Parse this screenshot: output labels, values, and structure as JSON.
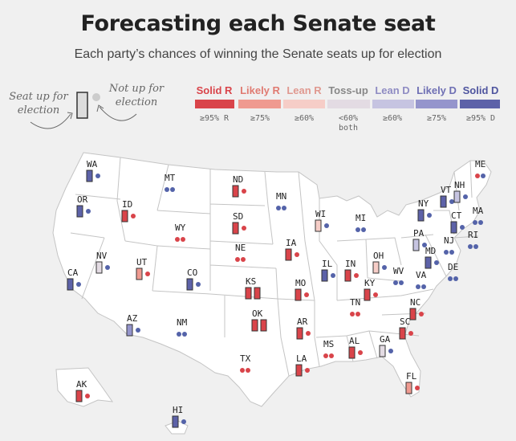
{
  "title": "Forecasting each Senate seat",
  "subtitle": "Each party’s chances of winning the Senate seats up for election",
  "hints": {
    "up": "Seat up for election",
    "not_up": "Not up for election"
  },
  "legend": [
    {
      "label": "Solid R",
      "color": "#d9444a",
      "threshold": "≥95% R",
      "threshold2": ""
    },
    {
      "label": "Likely R",
      "color": "#ef9a90",
      "threshold": "≥75%",
      "threshold2": ""
    },
    {
      "label": "Lean R",
      "color": "#f6cdc7",
      "threshold": "≥60%",
      "threshold2": ""
    },
    {
      "label": "Toss-up",
      "color": "#e3dbe3",
      "threshold": "<60%",
      "threshold2": "both"
    },
    {
      "label": "Lean D",
      "color": "#c6c4e1",
      "threshold": "≥60%",
      "threshold2": ""
    },
    {
      "label": "Likely D",
      "color": "#9595cc",
      "threshold": "≥75%",
      "threshold2": ""
    },
    {
      "label": "Solid D",
      "color": "#5d62a8",
      "threshold": "≥95% D",
      "threshold2": ""
    }
  ],
  "colors": {
    "R": "#d9444a",
    "LR": "#ef9a90",
    "LnR": "#f6cdc7",
    "T": "#e3dbe3",
    "LnD": "#c6c4e1",
    "LD": "#9595cc",
    "D": "#5d62a8",
    "dotR": "#d9444a",
    "dotD": "#5463a9",
    "dotNone": "#cccccc"
  },
  "states": [
    {
      "abbr": "WA",
      "seats": [
        "D"
      ],
      "dots": [
        "D"
      ]
    },
    {
      "abbr": "OR",
      "seats": [
        "D"
      ],
      "dots": [
        "D"
      ]
    },
    {
      "abbr": "CA",
      "seats": [
        "D"
      ],
      "dots": [
        "D"
      ]
    },
    {
      "abbr": "NV",
      "seats": [
        "T"
      ],
      "dots": [
        "D"
      ]
    },
    {
      "abbr": "ID",
      "seats": [
        "R"
      ],
      "dots": [
        "R"
      ]
    },
    {
      "abbr": "MT",
      "seats": [],
      "dots": [
        "D",
        "D"
      ]
    },
    {
      "abbr": "WY",
      "seats": [],
      "dots": [
        "R",
        "R"
      ]
    },
    {
      "abbr": "UT",
      "seats": [
        "LR"
      ],
      "dots": [
        "R"
      ]
    },
    {
      "abbr": "CO",
      "seats": [
        "D"
      ],
      "dots": [
        "D"
      ]
    },
    {
      "abbr": "AZ",
      "seats": [
        "LD"
      ],
      "dots": [
        "D"
      ]
    },
    {
      "abbr": "NM",
      "seats": [],
      "dots": [
        "D",
        "D"
      ]
    },
    {
      "abbr": "ND",
      "seats": [
        "R"
      ],
      "dots": [
        "R"
      ]
    },
    {
      "abbr": "SD",
      "seats": [
        "R"
      ],
      "dots": [
        "R"
      ]
    },
    {
      "abbr": "NE",
      "seats": [],
      "dots": [
        "R",
        "R"
      ]
    },
    {
      "abbr": "KS",
      "seats": [
        "R",
        "R"
      ],
      "dots": []
    },
    {
      "abbr": "OK",
      "seats": [
        "R",
        "R"
      ],
      "dots": []
    },
    {
      "abbr": "TX",
      "seats": [],
      "dots": [
        "R",
        "R"
      ]
    },
    {
      "abbr": "MN",
      "seats": [],
      "dots": [
        "D",
        "D"
      ]
    },
    {
      "abbr": "IA",
      "seats": [
        "R"
      ],
      "dots": [
        "R"
      ]
    },
    {
      "abbr": "MO",
      "seats": [
        "R"
      ],
      "dots": [
        "R"
      ]
    },
    {
      "abbr": "AR",
      "seats": [
        "R"
      ],
      "dots": [
        "R"
      ]
    },
    {
      "abbr": "LA",
      "seats": [
        "R"
      ],
      "dots": [
        "R"
      ]
    },
    {
      "abbr": "WI",
      "seats": [
        "LnR"
      ],
      "dots": [
        "D"
      ]
    },
    {
      "abbr": "IL",
      "seats": [
        "D"
      ],
      "dots": [
        "D"
      ]
    },
    {
      "abbr": "MI",
      "seats": [],
      "dots": [
        "D",
        "D"
      ]
    },
    {
      "abbr": "IN",
      "seats": [
        "R"
      ],
      "dots": [
        "R"
      ]
    },
    {
      "abbr": "OH",
      "seats": [
        "LnR"
      ],
      "dots": [
        "D"
      ]
    },
    {
      "abbr": "KY",
      "seats": [
        "R"
      ],
      "dots": [
        "R"
      ]
    },
    {
      "abbr": "TN",
      "seats": [],
      "dots": [
        "R",
        "R"
      ]
    },
    {
      "abbr": "MS",
      "seats": [],
      "dots": [
        "R",
        "R"
      ]
    },
    {
      "abbr": "AL",
      "seats": [
        "R"
      ],
      "dots": [
        "R"
      ]
    },
    {
      "abbr": "GA",
      "seats": [
        "T"
      ],
      "dots": [
        "D"
      ]
    },
    {
      "abbr": "FL",
      "seats": [
        "LR"
      ],
      "dots": [
        "R"
      ]
    },
    {
      "abbr": "SC",
      "seats": [
        "R"
      ],
      "dots": [
        "R"
      ]
    },
    {
      "abbr": "NC",
      "seats": [
        "R"
      ],
      "dots": [
        "R"
      ]
    },
    {
      "abbr": "WV",
      "seats": [],
      "dots": [
        "D",
        "D"
      ]
    },
    {
      "abbr": "VA",
      "seats": [],
      "dots": [
        "D",
        "D"
      ]
    },
    {
      "abbr": "PA",
      "seats": [
        "LnD"
      ],
      "dots": [
        "D"
      ]
    },
    {
      "abbr": "NY",
      "seats": [
        "D"
      ],
      "dots": [
        "D"
      ]
    },
    {
      "abbr": "VT",
      "seats": [
        "D"
      ],
      "dots": [
        "D"
      ]
    },
    {
      "abbr": "NH",
      "seats": [
        "LnD"
      ],
      "dots": [
        "D"
      ]
    },
    {
      "abbr": "ME",
      "seats": [],
      "dots": [
        "R",
        "D"
      ]
    },
    {
      "abbr": "MA",
      "seats": [],
      "dots": [
        "D",
        "D"
      ]
    },
    {
      "abbr": "CT",
      "seats": [
        "D"
      ],
      "dots": [
        "D"
      ]
    },
    {
      "abbr": "RI",
      "seats": [],
      "dots": [
        "D",
        "D"
      ]
    },
    {
      "abbr": "NJ",
      "seats": [],
      "dots": [
        "D",
        "D"
      ]
    },
    {
      "abbr": "DE",
      "seats": [],
      "dots": [
        "D",
        "D"
      ]
    },
    {
      "abbr": "MD",
      "seats": [
        "D"
      ],
      "dots": [
        "D"
      ]
    },
    {
      "abbr": "AK",
      "seats": [
        "R"
      ],
      "dots": [
        "R"
      ]
    },
    {
      "abbr": "HI",
      "seats": [
        "D"
      ],
      "dots": [
        "D"
      ]
    }
  ]
}
